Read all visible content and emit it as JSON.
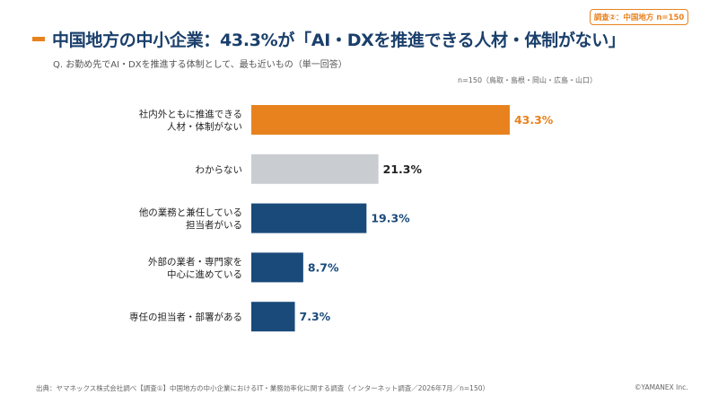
{
  "badge": "調査②：中国地方 n=150",
  "title": "中国地方の中小企業：43.3%が「AI・DXを推進できる人材・体制がない」",
  "question": "Q. お勤め先でAI・DXを推進する体制として、最も近いもの（単一回答）",
  "sample_note": "n=150（鳥取・島根・岡山・広島・山口）",
  "footer": {
    "source": "出典：ヤマネックス株式会社調べ【調査①】中国地方の中小企業におけるIT・業務効率化に関する調査（インターネット調査／2026年7月／n=150）",
    "copyright": "©YAMANEX Inc."
  },
  "chart_data": {
    "type": "bar",
    "orientation": "horizontal",
    "categories": [
      [
        "社内外ともに推進できる",
        "人材・体制がない"
      ],
      [
        "わからない"
      ],
      [
        "他の業務と兼任している",
        "担当者がいる"
      ],
      [
        "外部の業者・専門家を",
        "中心に進めている"
      ],
      [
        "専任の担当者・部署がある"
      ]
    ],
    "values": [
      43.3,
      21.3,
      19.3,
      8.7,
      7.3
    ],
    "value_labels": [
      "43.3%",
      "21.3%",
      "19.3%",
      "8.7%",
      "7.3%"
    ],
    "colors": [
      "#e8821e",
      "#c9cdd2",
      "#1a4a7a",
      "#1a4a7a",
      "#1a4a7a"
    ],
    "label_colors": [
      "#e8821e",
      "#222222",
      "#1a4a7a",
      "#1a4a7a",
      "#1a4a7a"
    ],
    "xlim": [
      0,
      100
    ],
    "grid": false,
    "legend": "none"
  }
}
